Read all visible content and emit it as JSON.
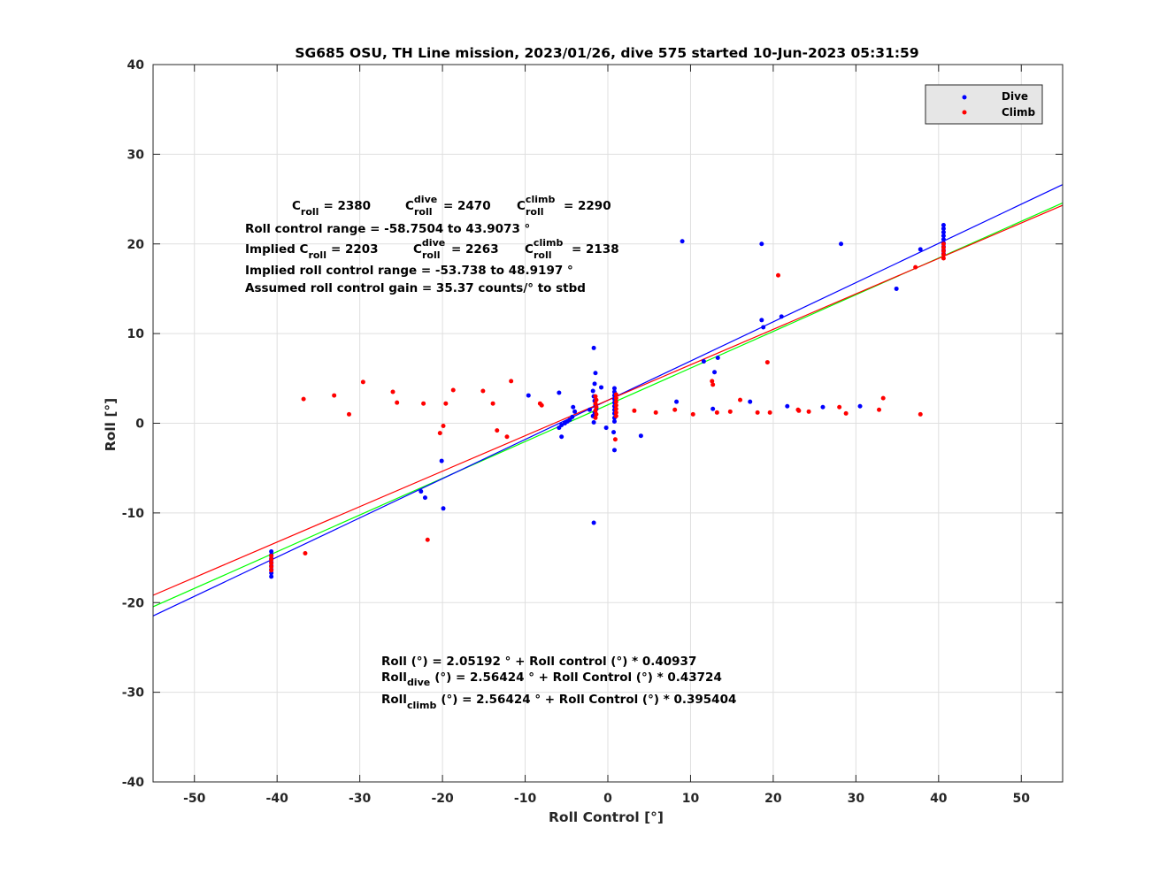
{
  "chart_data": {
    "type": "scatter",
    "title": "SG685 OSU, TH Line mission, 2023/01/26, dive 575 started 10-Jun-2023 05:31:59",
    "xlabel": "Roll Control [°]",
    "ylabel": "Roll [°]",
    "xlim": [
      -55,
      55
    ],
    "ylim": [
      -40,
      40
    ],
    "xticks": [
      -50,
      -40,
      -30,
      -20,
      -10,
      0,
      10,
      20,
      30,
      40,
      50
    ],
    "yticks": [
      -40,
      -30,
      -20,
      -10,
      0,
      10,
      20,
      30,
      40
    ],
    "xtick_labels": [
      "-50",
      "-40",
      "-30",
      "-20",
      "-10",
      "0",
      "10",
      "20",
      "30",
      "40",
      "50"
    ],
    "ytick_labels": [
      "-40",
      "-30",
      "-20",
      "-10",
      "0",
      "10",
      "20",
      "30",
      "40"
    ],
    "grid": true,
    "legend": "top-right",
    "series": [
      {
        "name": "Dive",
        "color": "#0000ff",
        "points": [
          [
            -40.7,
            -14.3
          ],
          [
            -40.7,
            -14.7
          ],
          [
            -40.7,
            -15.1
          ],
          [
            -40.7,
            -15.5
          ],
          [
            -40.7,
            -15.9
          ],
          [
            -40.7,
            -16.3
          ],
          [
            -40.7,
            -16.7
          ],
          [
            -40.7,
            -17.1
          ],
          [
            -22.6,
            -7.6
          ],
          [
            -22.1,
            -8.3
          ],
          [
            -20.1,
            -4.2
          ],
          [
            -19.9,
            -9.5
          ],
          [
            -9.6,
            3.1
          ],
          [
            -5.9,
            3.4
          ],
          [
            -5.6,
            -1.5
          ],
          [
            -5.9,
            -0.5
          ],
          [
            -5.6,
            -0.2
          ],
          [
            -5.2,
            0.0
          ],
          [
            -4.9,
            0.2
          ],
          [
            -4.6,
            0.4
          ],
          [
            -4.3,
            0.7
          ],
          [
            -4.0,
            1.3
          ],
          [
            -4.2,
            1.8
          ],
          [
            -2.2,
            1.5
          ],
          [
            -1.7,
            8.4
          ],
          [
            -1.5,
            5.6
          ],
          [
            -1.6,
            4.4
          ],
          [
            -1.8,
            3.6
          ],
          [
            -1.7,
            3.0
          ],
          [
            -1.6,
            2.5
          ],
          [
            -1.5,
            2.0
          ],
          [
            -1.4,
            1.6
          ],
          [
            -1.6,
            1.2
          ],
          [
            -1.8,
            0.8
          ],
          [
            -1.7,
            0.1
          ],
          [
            -1.7,
            -11.1
          ],
          [
            -0.8,
            4.0
          ],
          [
            -0.2,
            -0.5
          ],
          [
            0.8,
            3.9
          ],
          [
            0.8,
            3.5
          ],
          [
            0.8,
            3.1
          ],
          [
            0.8,
            2.7
          ],
          [
            0.8,
            2.3
          ],
          [
            0.8,
            1.9
          ],
          [
            0.8,
            1.5
          ],
          [
            0.8,
            1.1
          ],
          [
            0.8,
            0.6
          ],
          [
            0.8,
            0.2
          ],
          [
            0.7,
            -1.0
          ],
          [
            0.8,
            -3.0
          ],
          [
            4.0,
            -1.4
          ],
          [
            8.3,
            2.4
          ],
          [
            9.0,
            20.3
          ],
          [
            11.6,
            6.9
          ],
          [
            12.7,
            1.6
          ],
          [
            12.9,
            5.7
          ],
          [
            13.3,
            7.3
          ],
          [
            17.2,
            2.4
          ],
          [
            18.6,
            20.0
          ],
          [
            18.6,
            11.5
          ],
          [
            18.8,
            10.7
          ],
          [
            21.0,
            11.9
          ],
          [
            21.7,
            1.9
          ],
          [
            26.0,
            1.8
          ],
          [
            28.2,
            20.0
          ],
          [
            30.5,
            1.9
          ],
          [
            34.9,
            15.0
          ],
          [
            37.8,
            19.4
          ],
          [
            40.6,
            22.1
          ],
          [
            40.6,
            21.7
          ],
          [
            40.6,
            21.3
          ],
          [
            40.6,
            20.9
          ],
          [
            40.6,
            20.5
          ],
          [
            40.6,
            20.1
          ],
          [
            40.6,
            19.7
          ],
          [
            40.6,
            19.3
          ],
          [
            40.6,
            18.9
          ]
        ]
      },
      {
        "name": "Climb",
        "color": "#ff0000",
        "points": [
          [
            -40.7,
            -14.8
          ],
          [
            -40.7,
            -15.2
          ],
          [
            -40.7,
            -15.6
          ],
          [
            -40.7,
            -16.0
          ],
          [
            -40.7,
            -16.4
          ],
          [
            -36.8,
            2.7
          ],
          [
            -36.6,
            -14.5
          ],
          [
            -33.1,
            3.1
          ],
          [
            -31.3,
            1.0
          ],
          [
            -29.6,
            4.6
          ],
          [
            -26.0,
            3.5
          ],
          [
            -25.5,
            2.3
          ],
          [
            -22.3,
            2.2
          ],
          [
            -21.8,
            -13.0
          ],
          [
            -20.3,
            -1.1
          ],
          [
            -19.9,
            -0.3
          ],
          [
            -19.6,
            2.2
          ],
          [
            -18.7,
            3.7
          ],
          [
            -15.1,
            3.6
          ],
          [
            -13.9,
            2.2
          ],
          [
            -13.4,
            -0.8
          ],
          [
            -12.2,
            -1.5
          ],
          [
            -11.7,
            4.7
          ],
          [
            -8.2,
            2.2
          ],
          [
            -8.0,
            2.0
          ],
          [
            -1.5,
            3.0
          ],
          [
            -1.4,
            2.6
          ],
          [
            -1.5,
            2.2
          ],
          [
            -1.4,
            1.8
          ],
          [
            -1.5,
            1.4
          ],
          [
            -1.4,
            1.0
          ],
          [
            -1.5,
            0.6
          ],
          [
            1.0,
            3.2
          ],
          [
            1.0,
            2.8
          ],
          [
            1.0,
            2.4
          ],
          [
            1.0,
            2.0
          ],
          [
            1.0,
            1.6
          ],
          [
            1.0,
            1.2
          ],
          [
            1.0,
            0.8
          ],
          [
            0.9,
            -1.8
          ],
          [
            3.2,
            1.4
          ],
          [
            5.8,
            1.2
          ],
          [
            8.1,
            1.5
          ],
          [
            10.3,
            1.0
          ],
          [
            12.6,
            4.7
          ],
          [
            12.7,
            4.3
          ],
          [
            13.2,
            1.2
          ],
          [
            14.8,
            1.3
          ],
          [
            16.0,
            2.6
          ],
          [
            18.1,
            1.2
          ],
          [
            19.3,
            6.8
          ],
          [
            19.6,
            1.2
          ],
          [
            20.6,
            16.5
          ],
          [
            23.0,
            1.5
          ],
          [
            23.1,
            1.4
          ],
          [
            24.3,
            1.3
          ],
          [
            28.0,
            1.8
          ],
          [
            28.8,
            1.1
          ],
          [
            32.8,
            1.5
          ],
          [
            33.3,
            2.8
          ],
          [
            37.2,
            17.4
          ],
          [
            37.8,
            1.0
          ],
          [
            40.6,
            20.0
          ],
          [
            40.6,
            19.6
          ],
          [
            40.6,
            19.2
          ],
          [
            40.6,
            18.8
          ],
          [
            40.6,
            18.4
          ]
        ]
      }
    ],
    "fit_lines": [
      {
        "label": "Roll",
        "color": "#00ff00",
        "intercept": 2.05192,
        "slope": 0.40937
      },
      {
        "label": "Roll dive",
        "color": "#0000ff",
        "intercept": 2.56424,
        "slope": 0.43724
      },
      {
        "label": "Roll climb",
        "color": "#ff0000",
        "intercept": 2.56424,
        "slope": 0.395404
      }
    ],
    "annotations_top": {
      "line1": {
        "c": "C",
        "sub_roll": "roll",
        "eq1": "= 2380",
        "sup_dive": "dive",
        "eq2": "= 2470",
        "sup_climb": "climb",
        "eq3": "= 2290"
      },
      "line2": "Roll control range = -58.7504 to 43.9073 °",
      "line3": {
        "prefix": "Implied C",
        "sub_roll": "roll",
        "eq1": "= 2203",
        "c": "C",
        "sup_dive": "dive",
        "eq2": "= 2263",
        "sup_climb": "climb",
        "eq3": "= 2138"
      },
      "line4": "Implied roll control range = -53.738 to 48.9197 °",
      "line5": "Assumed roll control gain = 35.37 counts/° to stbd"
    },
    "annotations_bottom": {
      "line1": "Roll (°) = 2.05192 ° + Roll control (°) * 0.40937",
      "line2_prefix": "Roll",
      "line2_sub": "dive",
      "line2_rest": "(°) = 2.56424 ° + Roll Control (°) * 0.43724",
      "line3_prefix": "Roll",
      "line3_sub": "climb",
      "line3_rest": "(°) = 2.56424 ° + Roll Control (°) * 0.395404"
    }
  }
}
